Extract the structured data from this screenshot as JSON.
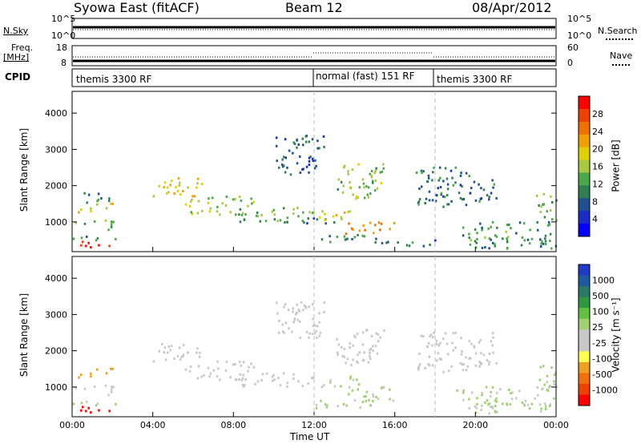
{
  "header": {
    "station": "Syowa East (fitACF)",
    "beam": "Beam 12",
    "date": "08/Apr/2012"
  },
  "top_panels": {
    "nsky_label": "N.Sky",
    "nsearch_label": "N.Search",
    "noise_ticks_left": [
      "10^5",
      "10^0"
    ],
    "noise_ticks_right": [
      "10^5",
      "10^0"
    ],
    "freq_label_line1": "Freq.",
    "freq_label_line2": "[MHz]",
    "freq_ticks": [
      "18",
      "8"
    ],
    "nave_label": "Nave",
    "nave_ticks": [
      "60",
      "0"
    ],
    "cpid_label": "CPID"
  },
  "cpid_segments": [
    {
      "label": "themis 3300 RF",
      "start_hour": 0,
      "end_hour": 12
    },
    {
      "label": "normal (fast) 151 RF",
      "start_hour": 12,
      "end_hour": 18
    },
    {
      "label": "themis 3300 RF",
      "start_hour": 18,
      "end_hour": 24
    }
  ],
  "colorbars": {
    "power": {
      "label": "Power [dB]",
      "ticks": [
        "28",
        "24",
        "20",
        "16",
        "12",
        "8",
        "4"
      ],
      "colors": [
        "#ff0000",
        "#f04000",
        "#f07000",
        "#f0a000",
        "#e0d000",
        "#a8c840",
        "#4aa848",
        "#2f8050",
        "#1e5090",
        "#1a2cc8",
        "#0000ff"
      ]
    },
    "velocity": {
      "label": "Velocity [m s⁻¹]",
      "ticks": [
        "1000",
        "500",
        "100",
        "25",
        "-25",
        "-100",
        "-500",
        "-1000"
      ],
      "colors": [
        "#1e3cc8",
        "#1e5aa0",
        "#2a7868",
        "#2e9840",
        "#60c040",
        "#a0d070",
        "#c8c8c8",
        "#c8c8c8",
        "#ffff50",
        "#f0a020",
        "#f07010",
        "#f04000",
        "#ff0000"
      ]
    }
  },
  "chart_data": [
    {
      "type": "heatmap",
      "name": "Power",
      "ylabel": "Slant Range [km]",
      "xlabel": "Time UT",
      "xlim_hours": [
        0,
        24
      ],
      "ylim_km": [
        180,
        4600
      ],
      "y_ticks": [
        1000,
        2000,
        3000,
        4000
      ],
      "x_ticks": [
        "00:00",
        "04:00",
        "08:00",
        "12:00",
        "16:00",
        "20:00",
        "00:00"
      ],
      "colorscale_dB": [
        0,
        30
      ],
      "blobs": [
        {
          "t": [
            0.4,
            2.1
          ],
          "r": [
            250,
            480
          ],
          "val": 29
        },
        {
          "t": [
            0.0,
            2.2
          ],
          "r": [
            480,
            620
          ],
          "val": 10
        },
        {
          "t": [
            0.1,
            2.0
          ],
          "r": [
            780,
            1050
          ],
          "val": 12
        },
        {
          "t": [
            0.2,
            2.0
          ],
          "r": [
            1250,
            1500
          ],
          "val": 18
        },
        {
          "t": [
            0.3,
            2.0
          ],
          "r": [
            1500,
            1800
          ],
          "val": 8
        },
        {
          "t": [
            4.0,
            6.6
          ],
          "r": [
            1700,
            2200
          ],
          "val": 18
        },
        {
          "t": [
            5.5,
            9.0
          ],
          "r": [
            1200,
            1700
          ],
          "val": 14
        },
        {
          "t": [
            8.0,
            12.0
          ],
          "r": [
            1000,
            1400
          ],
          "val": 12
        },
        {
          "t": [
            9.0,
            13.0
          ],
          "r": [
            950,
            1100
          ],
          "val": 6
        },
        {
          "t": [
            12.2,
            14.2
          ],
          "r": [
            1000,
            1300
          ],
          "val": 18
        },
        {
          "t": [
            13.5,
            16.0
          ],
          "r": [
            650,
            1000
          ],
          "val": 22
        },
        {
          "t": [
            12.0,
            16.0
          ],
          "r": [
            400,
            650
          ],
          "val": 9
        },
        {
          "t": [
            16.0,
            18.0
          ],
          "r": [
            300,
            500
          ],
          "val": 8
        },
        {
          "t": [
            10.0,
            12.5
          ],
          "r": [
            2300,
            3400
          ],
          "val": 6
        },
        {
          "t": [
            13.0,
            15.5
          ],
          "r": [
            1600,
            2600
          ],
          "val": 14
        },
        {
          "t": [
            17.0,
            21.0
          ],
          "r": [
            1400,
            2500
          ],
          "val": 8
        },
        {
          "t": [
            19.0,
            24.0
          ],
          "r": [
            250,
            1000
          ],
          "val": 10
        },
        {
          "t": [
            23.0,
            24.0
          ],
          "r": [
            900,
            1800
          ],
          "val": 12
        }
      ]
    },
    {
      "type": "heatmap",
      "name": "Velocity",
      "ylabel": "Slant Range [km]",
      "xlabel": "Time UT",
      "xlim_hours": [
        0,
        24
      ],
      "ylim_km": [
        180,
        4600
      ],
      "y_ticks": [
        1000,
        2000,
        3000,
        4000
      ],
      "x_ticks": [
        "00:00",
        "04:00",
        "08:00",
        "12:00",
        "16:00",
        "20:00",
        "00:00"
      ],
      "colorscale_ms": [
        -1000,
        1000
      ],
      "blobs": [
        {
          "t": [
            0.4,
            2.1
          ],
          "r": [
            250,
            480
          ],
          "val": -1000
        },
        {
          "t": [
            0.0,
            2.2
          ],
          "r": [
            480,
            620
          ],
          "val": 100
        },
        {
          "t": [
            0.1,
            2.0
          ],
          "r": [
            780,
            1050
          ],
          "val": -100
        },
        {
          "t": [
            0.2,
            2.0
          ],
          "r": [
            1250,
            1500
          ],
          "val": -500
        },
        {
          "t": [
            4.0,
            6.6
          ],
          "r": [
            1700,
            2200
          ],
          "val": -100
        },
        {
          "t": [
            5.5,
            9.0
          ],
          "r": [
            1200,
            1700
          ],
          "val": 0
        },
        {
          "t": [
            8.0,
            12.0
          ],
          "r": [
            1000,
            1400
          ],
          "val": 0
        },
        {
          "t": [
            12.2,
            14.2
          ],
          "r": [
            1000,
            1300
          ],
          "val": 100
        },
        {
          "t": [
            13.5,
            16.0
          ],
          "r": [
            650,
            1000
          ],
          "val": 100
        },
        {
          "t": [
            12.0,
            16.0
          ],
          "r": [
            400,
            650
          ],
          "val": 100
        },
        {
          "t": [
            10.0,
            12.5
          ],
          "r": [
            2300,
            3400
          ],
          "val": 0
        },
        {
          "t": [
            13.0,
            15.5
          ],
          "r": [
            1600,
            2600
          ],
          "val": 0
        },
        {
          "t": [
            17.0,
            21.0
          ],
          "r": [
            1400,
            2500
          ],
          "val": -100
        },
        {
          "t": [
            19.0,
            24.0
          ],
          "r": [
            250,
            1000
          ],
          "val": 100
        },
        {
          "t": [
            23.0,
            24.0
          ],
          "r": [
            900,
            1800
          ],
          "val": 100
        }
      ]
    }
  ]
}
